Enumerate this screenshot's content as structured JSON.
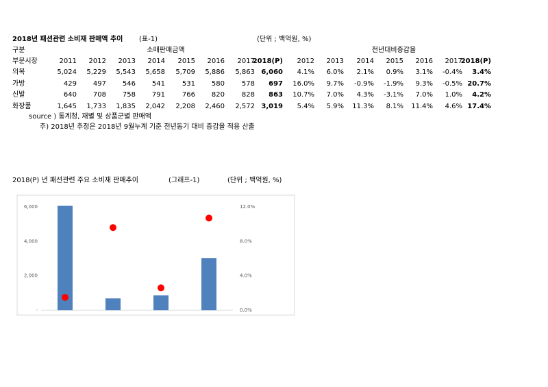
{
  "table": {
    "title": "2018년 패션관련 소비재 판매액 추이",
    "tag": "(표-1)",
    "unit": "(단위 ; 백억원, %)",
    "group_header": [
      "구분",
      "소매판매금액",
      "전년대비증감율"
    ],
    "columns": [
      "부문시장",
      "2011",
      "2012",
      "2013",
      "2014",
      "2015",
      "2016",
      "2017",
      "2018(P)",
      "2012",
      "2013",
      "2014",
      "2015",
      "2016",
      "2017",
      "2018(P)"
    ],
    "rows": [
      [
        "의복",
        "5,024",
        "5,229",
        "5,543",
        "5,658",
        "5,709",
        "5,886",
        "5,863",
        "6,060",
        "4.1%",
        "6.0%",
        "2.1%",
        "0.9%",
        "3.1%",
        "-0.4%",
        "3.4%"
      ],
      [
        "가방",
        "429",
        "497",
        "546",
        "541",
        "531",
        "580",
        "578",
        "697",
        "16.0%",
        "9.7%",
        "-0.9%",
        "-1.9%",
        "9.3%",
        "-0.5%",
        "20.7%"
      ],
      [
        "신발",
        "640",
        "708",
        "758",
        "791",
        "766",
        "820",
        "828",
        "863",
        "10.7%",
        "7.0%",
        "4.3%",
        "-3.1%",
        "7.0%",
        "1.0%",
        "4.2%"
      ],
      [
        "화장품",
        "1,645",
        "1,733",
        "1,835",
        "2,042",
        "2,208",
        "2,460",
        "2,572",
        "3,019",
        "5.4%",
        "5.9%",
        "11.3%",
        "8.1%",
        "11.4%",
        "4.6%",
        "17.4%"
      ]
    ],
    "notes": [
      "source ) 통계청, 재별 및 상품군별 판매액",
      "주) 2018년 추정은 2018년 9월누계 기준 전년동기 대비 증감율 적용 산출"
    ]
  },
  "chart_data": {
    "type": "bar",
    "title": "2018(P) 년 패션관련 주요 소비재 판매추이",
    "tag": "(그래프-1)",
    "unit": "(단위 ; 백억원, %)",
    "categories": [
      null,
      null,
      null,
      null
    ],
    "series": [
      {
        "type": "bar",
        "color": "#4f81bd",
        "values": [
          6060,
          697,
          863,
          3019
        ]
      },
      {
        "type": "scatter",
        "color": "#ff0000",
        "axis": "y2",
        "values": [
          1.5,
          9.6,
          2.6,
          10.7
        ]
      }
    ],
    "ylim": [
      0,
      6000
    ],
    "yticks": [
      {
        "value": 0,
        "label": "-"
      },
      {
        "value": 2000,
        "label": "2,000"
      },
      {
        "value": 4000,
        "label": "4,000"
      },
      {
        "value": 6000,
        "label": "6,000"
      }
    ],
    "y2lim": [
      0,
      12
    ],
    "y2ticks": [
      {
        "value": 0,
        "label": "0.0%"
      },
      {
        "value": 4,
        "label": "4.0%"
      },
      {
        "value": 8,
        "label": "8.0%"
      },
      {
        "value": 12,
        "label": "12.0%"
      }
    ]
  }
}
